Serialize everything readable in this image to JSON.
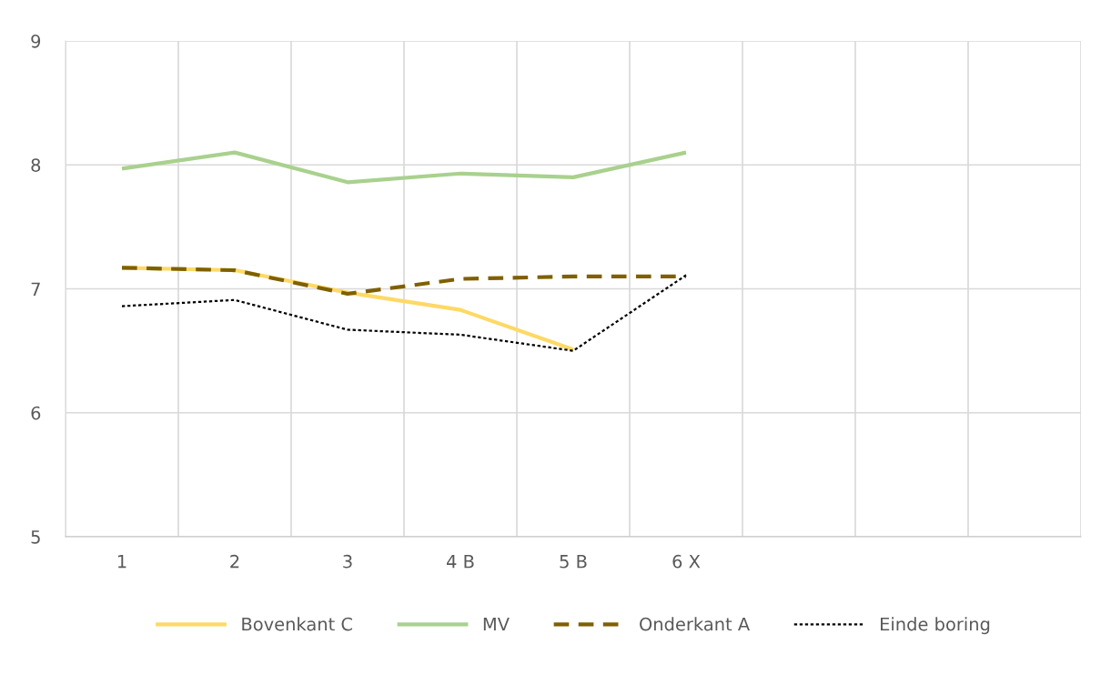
{
  "chart_data": {
    "type": "line",
    "categories": [
      "1",
      "2",
      "3",
      "4 B",
      "5 B",
      "6 X",
      null,
      null,
      null
    ],
    "series": [
      {
        "name": "Bovenkant C",
        "color": "#ffd966",
        "line_style": "solid",
        "values": [
          7.17,
          7.15,
          6.97,
          6.83,
          6.51,
          null,
          null,
          null,
          null
        ]
      },
      {
        "name": "MV",
        "color": "#a9d18e",
        "line_style": "solid",
        "values": [
          7.97,
          8.1,
          7.86,
          7.93,
          7.9,
          8.1,
          null,
          null,
          null
        ]
      },
      {
        "name": "Onderkant A",
        "color": "#7f6000",
        "line_style": "dashed",
        "values": [
          7.17,
          7.15,
          6.96,
          7.08,
          7.1,
          7.1,
          null,
          null,
          null
        ]
      },
      {
        "name": "Einde boring",
        "color": "#000000",
        "line_style": "dotted",
        "values": [
          6.86,
          6.91,
          6.67,
          6.63,
          6.5,
          7.11,
          null,
          null,
          null
        ]
      }
    ],
    "ylim": [
      5,
      9
    ],
    "yticks": [
      5,
      6,
      7,
      8,
      9
    ],
    "grid": true,
    "legend": "bottom"
  }
}
